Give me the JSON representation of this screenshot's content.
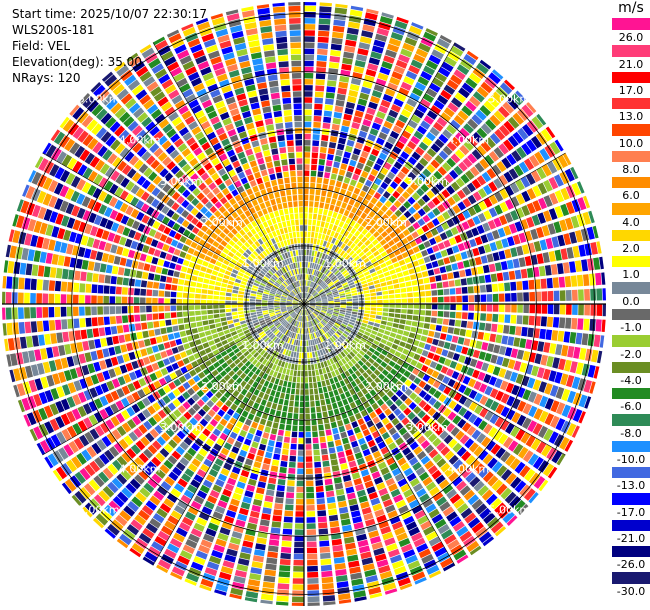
{
  "header": {
    "lines": [
      "Start time: 2025/10/07 22:30:17",
      "WLS200s-181",
      "Field: VEL",
      "Elevation(deg): 35.00",
      "NRays: 120"
    ]
  },
  "chart_data": {
    "type": "heatmap",
    "subtype": "polar-ppi",
    "field": "VEL",
    "colorbar": {
      "unit": "m/s",
      "ticks": [
        "26.0",
        "21.0",
        "17.0",
        "13.0",
        "10.0",
        "8.0",
        "6.0",
        "4.0",
        "2.0",
        "1.0",
        "0.0",
        "-1.0",
        "-2.0",
        "-4.0",
        "-6.0",
        "-8.0",
        "-10.0",
        "-13.0",
        "-17.0",
        "-21.0",
        "-26.0",
        "-30.0"
      ],
      "colors": [
        "#ff1493",
        "#ff3c78",
        "#ff0000",
        "#ff3232",
        "#ff4500",
        "#ff7f50",
        "#ff8c00",
        "#ffa500",
        "#ffd700",
        "#ffff00",
        "#778899",
        "#696969",
        "#9acd32",
        "#6b8e23",
        "#228b22",
        "#2e8b57",
        "#1e90ff",
        "#4169e1",
        "#0000ff",
        "#0000cd",
        "#000080",
        "#191970"
      ]
    },
    "range_rings_km": [
      "1.00km",
      "2.00km",
      "3.00km",
      "4.00km",
      "5.00km"
    ],
    "range_ring_values_km": [
      1,
      2,
      3,
      4,
      5
    ],
    "max_range_km": 5.2,
    "nrays": 120,
    "elevation_deg": 35.0,
    "zones": [
      {
        "from_km": 0.0,
        "to_km": 1.0,
        "dominant": [
          "0.0",
          "1.0",
          "-1.0",
          "2.0"
        ]
      },
      {
        "from_km": 1.0,
        "to_km": 1.3,
        "dominant": [
          "2.0",
          "1.0",
          "4.0",
          "-2.0"
        ]
      },
      {
        "from_km": 1.3,
        "to_km": 2.2,
        "dominant": [
          "2.0",
          "4.0",
          "-2.0",
          "-4.0"
        ]
      },
      {
        "from_km": 2.2,
        "to_km": 5.2,
        "dominant": [
          "noise"
        ]
      }
    ]
  }
}
